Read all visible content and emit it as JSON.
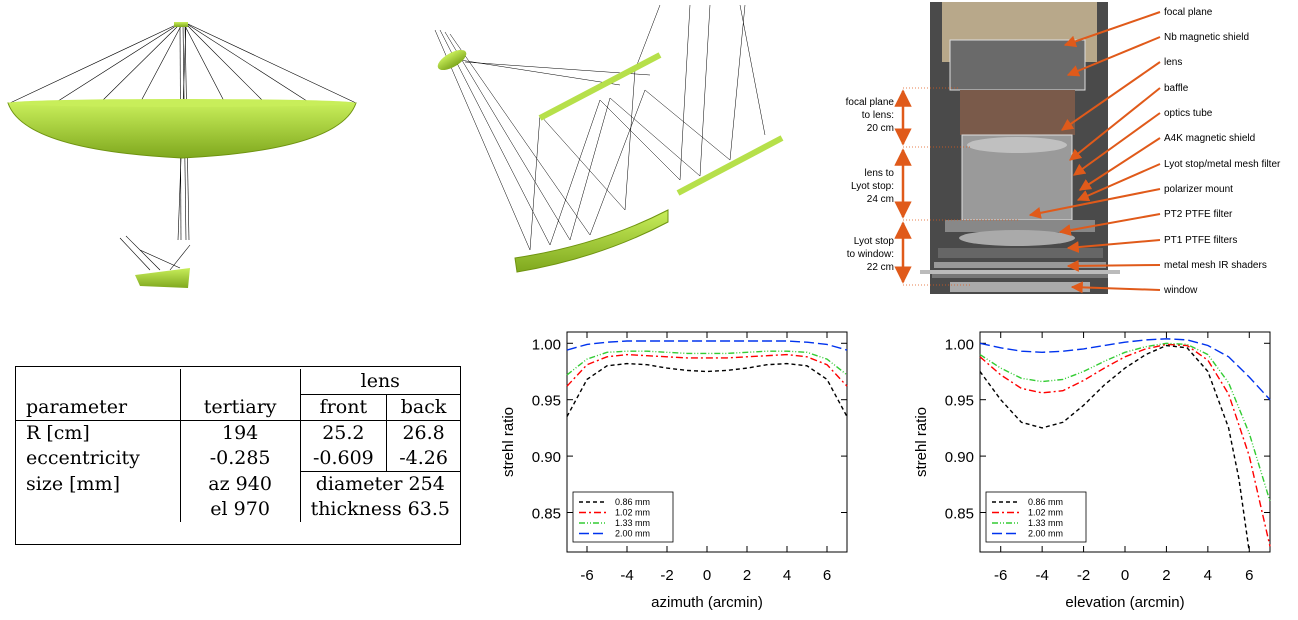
{
  "labels": {
    "right": [
      "focal plane",
      "Nb magnetic shield",
      "lens",
      "baffle",
      "optics tube",
      "A4K magnetic shield",
      "Lyot stop/metal mesh filter",
      "polarizer mount",
      "PT2 PTFE filter",
      "PT1 PTFE filters",
      "metal mesh IR shaders",
      "window"
    ],
    "left": [
      {
        "lines": [
          "focal plane",
          "to lens:",
          "20 cm"
        ]
      },
      {
        "lines": [
          "lens to",
          "Lyot stop:",
          "24 cm"
        ]
      },
      {
        "lines": [
          "Lyot stop",
          "to window:",
          "22 cm"
        ]
      }
    ]
  },
  "table": {
    "header1": {
      "lens": "lens"
    },
    "header2": {
      "parameter": "parameter",
      "tertiary": "tertiary",
      "front": "front",
      "back": "back"
    },
    "rows": [
      {
        "param": "R [cm]",
        "tertiary": "194",
        "front": "25.2",
        "back": "26.8"
      },
      {
        "param": "eccentricity",
        "tertiary": "-0.285",
        "front": "-0.609",
        "back": "-4.26"
      },
      {
        "param": "size [mm]",
        "tertiary": "az 940",
        "lens": "diameter 254"
      },
      {
        "param": "",
        "tertiary": "el 970",
        "lens": "thickness 63.5"
      }
    ]
  },
  "colors": {
    "mirror": "#a8d63a",
    "arrow": "#e05a1a"
  },
  "chart_data": [
    {
      "type": "line",
      "xlabel": "azimuth (arcmin)",
      "ylabel": "strehl ratio",
      "xlim": [
        -7,
        7
      ],
      "ylim": [
        0.815,
        1.01
      ],
      "xticks": [
        "-6",
        "-4",
        "-2",
        "0",
        "2",
        "4",
        "6"
      ],
      "yticks": [
        "0.85",
        "0.90",
        "0.95",
        "1.00"
      ],
      "legend_position": "bottom-left",
      "series": [
        {
          "name": "0.86 mm",
          "color": "#000000",
          "dash": "4,3",
          "x": [
            -7,
            -6,
            -5,
            -4,
            -3,
            -2,
            -1,
            0,
            1,
            2,
            3,
            4,
            5,
            6,
            7
          ],
          "y": [
            0.935,
            0.968,
            0.98,
            0.982,
            0.981,
            0.978,
            0.976,
            0.975,
            0.976,
            0.978,
            0.981,
            0.982,
            0.98,
            0.968,
            0.935
          ]
        },
        {
          "name": "1.02 mm",
          "color": "#ff0000",
          "dash": "7,3,2,3",
          "x": [
            -7,
            -6,
            -5,
            -4,
            -3,
            -2,
            -1,
            0,
            1,
            2,
            3,
            4,
            5,
            6,
            7
          ],
          "y": [
            0.962,
            0.981,
            0.988,
            0.99,
            0.989,
            0.988,
            0.987,
            0.987,
            0.987,
            0.988,
            0.989,
            0.99,
            0.988,
            0.981,
            0.962
          ]
        },
        {
          "name": "1.33 mm",
          "color": "#33cc33",
          "dash": "6,2,1,2,1,2",
          "x": [
            -7,
            -6,
            -5,
            -4,
            -3,
            -2,
            -1,
            0,
            1,
            2,
            3,
            4,
            5,
            6,
            7
          ],
          "y": [
            0.972,
            0.986,
            0.992,
            0.993,
            0.993,
            0.992,
            0.991,
            0.991,
            0.991,
            0.992,
            0.993,
            0.993,
            0.992,
            0.986,
            0.972
          ]
        },
        {
          "name": "2.00 mm",
          "color": "#0033ee",
          "dash": "10,4",
          "x": [
            -7,
            -6,
            -5,
            -4,
            -3,
            -2,
            -1,
            0,
            1,
            2,
            3,
            4,
            5,
            6,
            7
          ],
          "y": [
            0.994,
            0.999,
            1.001,
            1.002,
            1.002,
            1.002,
            1.002,
            1.002,
            1.002,
            1.002,
            1.002,
            1.002,
            1.001,
            0.999,
            0.994
          ]
        }
      ]
    },
    {
      "type": "line",
      "xlabel": "elevation (arcmin)",
      "ylabel": "strehl ratio",
      "xlim": [
        -7,
        7
      ],
      "ylim": [
        0.815,
        1.01
      ],
      "xticks": [
        "-6",
        "-4",
        "-2",
        "0",
        "2",
        "4",
        "6"
      ],
      "yticks": [
        "0.85",
        "0.90",
        "0.95",
        "1.00"
      ],
      "legend_position": "bottom-left",
      "series": [
        {
          "name": "0.86 mm",
          "color": "#000000",
          "dash": "4,3",
          "x": [
            -7,
            -6,
            -5,
            -4,
            -3,
            -2,
            -1,
            0,
            1,
            2,
            3,
            4,
            5,
            5.5,
            6
          ],
          "y": [
            0.975,
            0.95,
            0.93,
            0.925,
            0.93,
            0.945,
            0.963,
            0.978,
            0.99,
            0.998,
            0.996,
            0.975,
            0.925,
            0.88,
            0.815
          ]
        },
        {
          "name": "1.02 mm",
          "color": "#ff0000",
          "dash": "7,3,2,3",
          "x": [
            -7,
            -6,
            -5,
            -4,
            -3,
            -2,
            -1,
            0,
            1,
            2,
            3,
            4,
            5,
            6,
            6.5,
            7
          ],
          "y": [
            0.988,
            0.972,
            0.96,
            0.956,
            0.958,
            0.967,
            0.978,
            0.988,
            0.995,
            0.999,
            0.998,
            0.985,
            0.955,
            0.9,
            0.86,
            0.82
          ]
        },
        {
          "name": "1.33 mm",
          "color": "#33cc33",
          "dash": "6,2,1,2,1,2",
          "x": [
            -7,
            -6,
            -5,
            -4,
            -3,
            -2,
            -1,
            0,
            1,
            2,
            3,
            4,
            5,
            6,
            7
          ],
          "y": [
            0.99,
            0.978,
            0.969,
            0.966,
            0.968,
            0.975,
            0.984,
            0.992,
            0.997,
            1.0,
            0.999,
            0.99,
            0.965,
            0.92,
            0.86
          ]
        },
        {
          "name": "2.00 mm",
          "color": "#0033ee",
          "dash": "10,4",
          "x": [
            -7,
            -6,
            -5,
            -4,
            -3,
            -2,
            -1,
            0,
            1,
            2,
            3,
            4,
            5,
            6,
            7
          ],
          "y": [
            1.0,
            0.996,
            0.993,
            0.992,
            0.993,
            0.995,
            0.998,
            1.001,
            1.003,
            1.004,
            1.003,
            0.998,
            0.988,
            0.97,
            0.95
          ]
        }
      ]
    }
  ]
}
